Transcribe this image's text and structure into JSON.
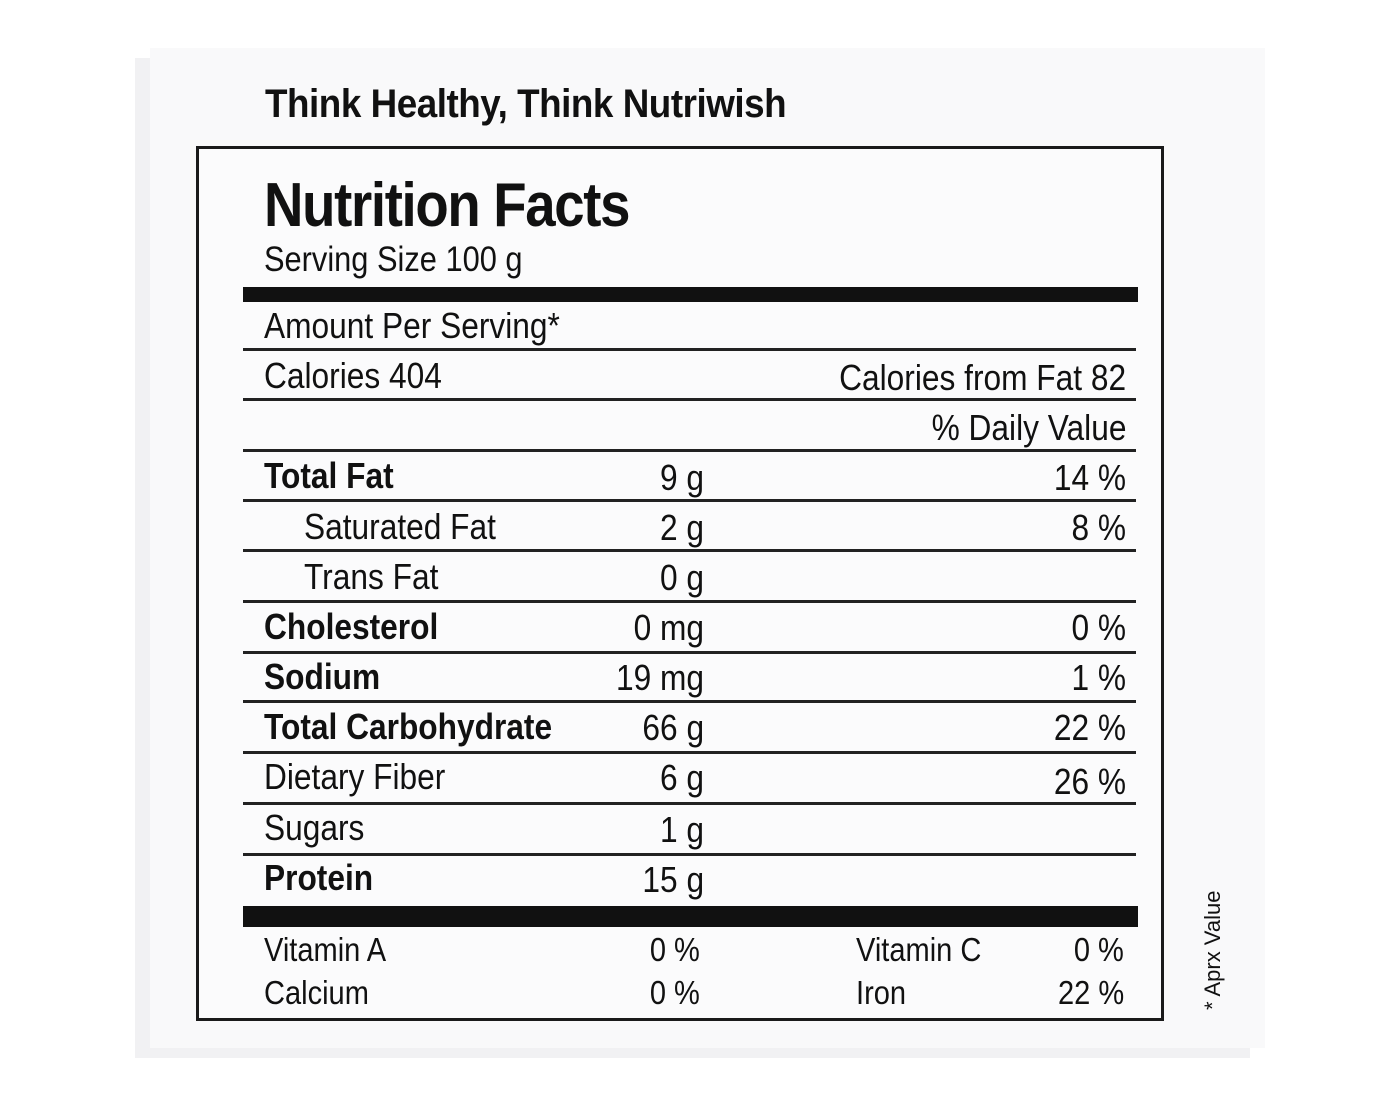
{
  "tagline": "Think Healthy, Think Nutriwish",
  "label": {
    "title": "Nutrition Facts",
    "serving_size": "Serving Size 100 g",
    "amount_per_serving": "Amount Per Serving*",
    "calories": "Calories 404",
    "calories_from_fat": "Calories from Fat 82",
    "daily_value_header": "% Daily Value",
    "nutrients": [
      {
        "name": "Total Fat",
        "amount": "9 g",
        "dv": "14 %"
      },
      {
        "name": "Saturated Fat",
        "amount": "2 g",
        "dv": "8 %"
      },
      {
        "name": "Trans Fat",
        "amount": "0 g",
        "dv": ""
      },
      {
        "name": "Cholesterol",
        "amount": "0 mg",
        "dv": "0 %"
      },
      {
        "name": "Sodium",
        "amount": "19 mg",
        "dv": "1 %"
      },
      {
        "name": "Total Carbohydrate",
        "amount": "66 g",
        "dv": "22 %"
      },
      {
        "name": "Dietary Fiber",
        "amount": "6 g",
        "dv": "26 %"
      },
      {
        "name": "Sugars",
        "amount": "1 g",
        "dv": ""
      },
      {
        "name": "Protein",
        "amount": "15 g",
        "dv": ""
      }
    ],
    "vitamins": [
      {
        "name": "Vitamin A",
        "dv": "0 %",
        "name2": "Vitamin C",
        "dv2": "0 %"
      },
      {
        "name": "Calcium",
        "dv": "0 %",
        "name2": "Iron",
        "dv2": "22 %"
      }
    ],
    "footnote": "* Aprx Value"
  }
}
